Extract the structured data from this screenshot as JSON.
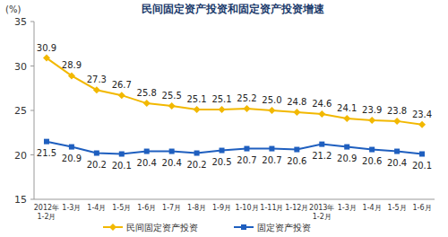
{
  "chart_data": {
    "type": "line",
    "title": "民间固定资产投资和固定资产投资增速",
    "y_label": "(%)",
    "categories": [
      "2012年1-2月",
      "1-3月",
      "1-4月",
      "1-5月",
      "1-6月",
      "1-7月",
      "1-8月",
      "1-9月",
      "1-10月",
      "1-11月",
      "1-12月",
      "2013年1-2月",
      "1-3月",
      "1-4月",
      "1-5月",
      "1-6月"
    ],
    "series": [
      {
        "name": "民间固定资产投资",
        "color": "#f2b800",
        "marker": "diamond",
        "values": [
          30.9,
          28.9,
          27.3,
          26.7,
          25.8,
          25.5,
          25.1,
          25.1,
          25.2,
          25.0,
          24.8,
          24.6,
          24.1,
          23.9,
          23.8,
          23.4
        ],
        "value_labels": [
          "30.9",
          "28.9",
          "27.3",
          "26.7",
          "25.8",
          "25.5",
          "25.1",
          "25.1",
          "25.2",
          "25.0",
          "24.8",
          "24.6",
          "24.1",
          "23.9",
          "23.8",
          "23.4"
        ]
      },
      {
        "name": "固定资产投资",
        "color": "#1f5fbf",
        "marker": "square",
        "values": [
          21.5,
          20.9,
          20.2,
          20.1,
          20.4,
          20.4,
          20.2,
          20.5,
          20.7,
          20.7,
          20.6,
          21.2,
          20.9,
          20.6,
          20.4,
          20.1
        ],
        "value_labels": [
          "21.5",
          "20.9",
          "20.2",
          "20.1",
          "20.4",
          "20.4",
          "20.2",
          "20.5",
          "20.7",
          "20.7",
          "20.6",
          "21.2",
          "20.9",
          "20.6",
          "20.4",
          "20.1"
        ]
      }
    ],
    "ylim": [
      15,
      35
    ],
    "yticks": [
      15,
      20,
      25,
      30,
      35
    ],
    "grid": false,
    "data_labels": true,
    "legend": "bottom"
  }
}
